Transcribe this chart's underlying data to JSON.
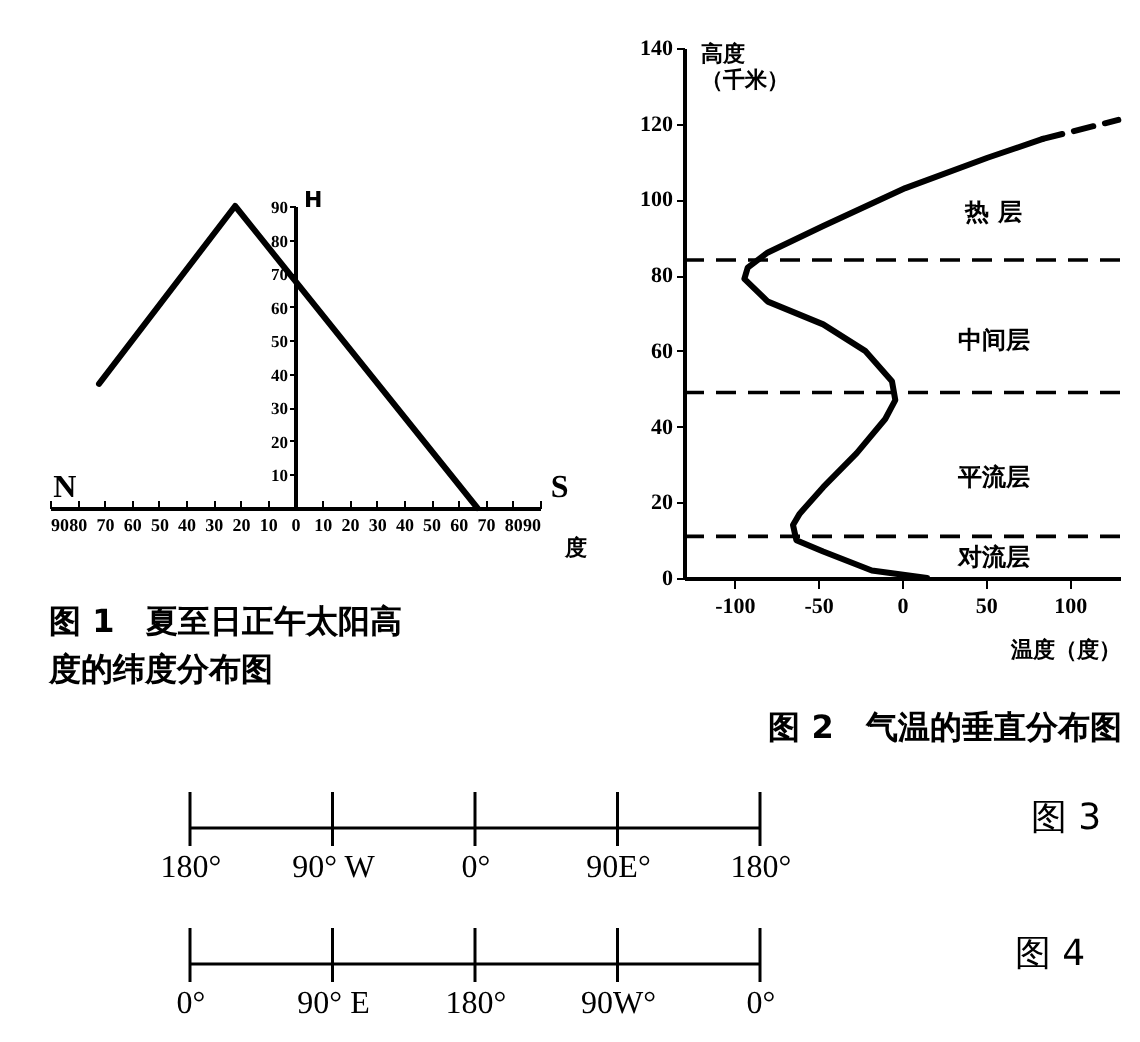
{
  "chart_data": [
    {
      "type": "line",
      "title": "图 1　夏至日正午太阳高度的纬度分布图",
      "xlabel": "度",
      "ylabel": "H",
      "annotations": [
        "N",
        "S"
      ],
      "x": [
        -72,
        -22,
        67
      ],
      "values": [
        37,
        90,
        0
      ],
      "color": "#000000",
      "xlim": [
        -90,
        90
      ],
      "ylim": [
        0,
        90
      ],
      "xticks": [
        {
          "value": -90,
          "label": "90"
        },
        {
          "value": -80,
          "label": "80"
        },
        {
          "value": -70,
          "label": "70"
        },
        {
          "value": -60,
          "label": "60"
        },
        {
          "value": -50,
          "label": "50"
        },
        {
          "value": -40,
          "label": "40"
        },
        {
          "value": -30,
          "label": "30"
        },
        {
          "value": -20,
          "label": "20"
        },
        {
          "value": -10,
          "label": "10"
        },
        0,
        10,
        20,
        30,
        40,
        50,
        60,
        70,
        80,
        90
      ],
      "yticks": [
        10,
        20,
        30,
        40,
        50,
        60,
        70,
        80,
        90
      ]
    },
    {
      "type": "line",
      "title": "图 2　气温的垂直分布图",
      "xlabel": "温度（度）",
      "ylabel": "高度（千米）",
      "series": [
        {
          "color": "#000000",
          "x": [
            15,
            -18,
            -47,
            -63,
            -65,
            -61,
            -47,
            -27,
            -10,
            -4,
            -6,
            -22,
            -47,
            -80,
            -94,
            -92,
            -80,
            -47,
            2,
            51,
            84
          ],
          "values": [
            0,
            2,
            7,
            10,
            14,
            17,
            24,
            33,
            42,
            47,
            52,
            60,
            67,
            73,
            79,
            82,
            86,
            93,
            103,
            111,
            116
          ]
        },
        {
          "color": "#000000",
          "line_style": "dashed",
          "x": [
            84,
            129
          ],
          "values": [
            116,
            121
          ]
        }
      ],
      "xlim": [
        -130,
        130
      ],
      "ylim": [
        0,
        140
      ],
      "xticks": [
        -100,
        -50,
        0,
        50,
        100
      ],
      "yticks": [
        0,
        20,
        40,
        60,
        80,
        100,
        120,
        140
      ],
      "ref_lines": [
        {
          "axis": "y",
          "value": 84,
          "label": null,
          "line_style": "dashed",
          "color": "#000000"
        },
        {
          "axis": "y",
          "value": 49,
          "label": null,
          "line_style": "dashed",
          "color": "#000000"
        },
        {
          "axis": "y",
          "value": 11,
          "label": null,
          "line_style": "dashed",
          "color": "#000000"
        }
      ],
      "annotations": [
        "热 层",
        "中间层",
        "平流层",
        "对流层"
      ]
    },
    {
      "type": "other",
      "title": "图 3",
      "categories": [
        "180°",
        "90° W",
        "0°",
        "90E°",
        "180°"
      ]
    },
    {
      "type": "other",
      "title": "图 4",
      "categories": [
        "0°",
        "90° E",
        "180°",
        "90W°",
        "0°"
      ]
    }
  ]
}
